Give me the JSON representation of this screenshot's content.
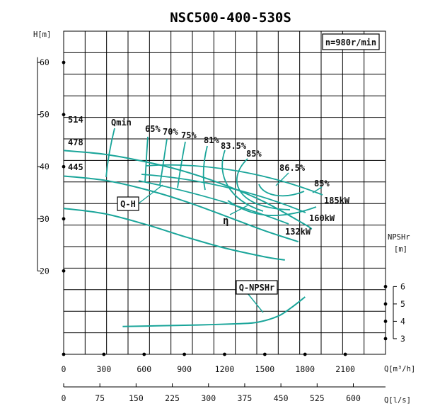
{
  "chart_data": {
    "type": "line",
    "title": "NSC500-400-530S",
    "speed_label": "n=980r/min",
    "x_axis": {
      "label": "Q[m³/h]",
      "range": [
        0,
        2400
      ],
      "ticks": [
        "0",
        "300",
        "600",
        "900",
        "1200",
        "1500",
        "1800",
        "2100"
      ]
    },
    "x2_axis": {
      "label": "Q[l/s]",
      "ticks": [
        "0",
        "75",
        "150",
        "225",
        "300",
        "375",
        "450",
        "525",
        "600"
      ]
    },
    "y_axis": {
      "label": "H[m]",
      "range": [
        4,
        66
      ],
      "ticks": [
        "60",
        "50",
        "40",
        "30",
        "20"
      ]
    },
    "y2_axis": {
      "label": "NPSHr [m]",
      "ticks": [
        "6",
        "5",
        "4",
        "3"
      ]
    },
    "grid": true,
    "impeller_labels": [
      "514",
      "478",
      "445"
    ],
    "qmin_label": "Qmin",
    "efficiency_labels": [
      "65%",
      "70%",
      "75%",
      "81%",
      "83.5%",
      "85%",
      "86.5%",
      "85%"
    ],
    "power_labels": [
      "185kW",
      "160kW",
      "132kW"
    ],
    "box_labels": {
      "qh": "Q-H",
      "npsh": "Q-NPSHr"
    },
    "eta_label": "η",
    "series": [
      {
        "name": "514",
        "values": [
          [
            0,
            43.1
          ],
          [
            300,
            42.4
          ],
          [
            600,
            41.0
          ],
          [
            900,
            39.1
          ],
          [
            1200,
            36.5
          ],
          [
            1500,
            33.2
          ],
          [
            1800,
            28.9
          ],
          [
            1850,
            28.0
          ]
        ]
      },
      {
        "name": "478",
        "values": [
          [
            0,
            38.2
          ],
          [
            300,
            37.4
          ],
          [
            600,
            35.7
          ],
          [
            900,
            33.4
          ],
          [
            1200,
            30.6
          ],
          [
            1500,
            27.7
          ],
          [
            1750,
            25.6
          ]
        ]
      },
      {
        "name": "445",
        "values": [
          [
            0,
            32.0
          ],
          [
            300,
            31.0
          ],
          [
            600,
            29.0
          ],
          [
            900,
            26.6
          ],
          [
            1200,
            24.4
          ],
          [
            1500,
            22.7
          ],
          [
            1650,
            22.1
          ]
        ]
      },
      {
        "name": "Q-NPSHr",
        "values": [
          [
            440,
            3.7
          ],
          [
            700,
            3.74
          ],
          [
            1000,
            3.79
          ],
          [
            1300,
            3.86
          ],
          [
            1450,
            3.95
          ],
          [
            1600,
            4.3
          ],
          [
            1700,
            4.8
          ],
          [
            1800,
            5.4
          ]
        ]
      }
    ]
  }
}
